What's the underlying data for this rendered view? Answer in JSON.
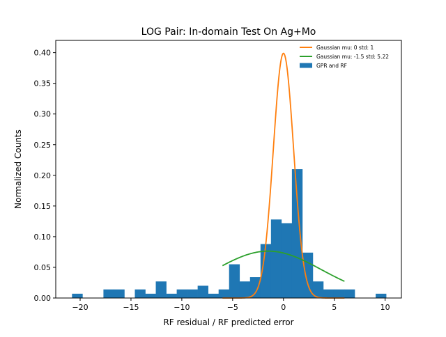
{
  "chart_data": {
    "type": "bar",
    "title": "LOG Pair: In-domain Test On Ag+Mo",
    "xlabel": "RF residual / RF predicted error",
    "ylabel": "Normalized Counts",
    "xlim": [
      -22.4,
      11.6
    ],
    "ylim": [
      0,
      0.42
    ],
    "x_ticks": [
      -20,
      -15,
      -10,
      -5,
      0,
      5,
      10
    ],
    "y_ticks": [
      0.0,
      0.05,
      0.1,
      0.15,
      0.2,
      0.25,
      0.3,
      0.35,
      0.4
    ],
    "grid": false,
    "legend_position": "top-right",
    "histogram": {
      "name": "GPR and RF",
      "color": "#1f77b4",
      "bin_edges": [
        -20.8,
        -19.77,
        -18.74,
        -17.71,
        -16.68,
        -15.65,
        -14.62,
        -13.59,
        -12.56,
        -11.53,
        -10.5,
        -9.47,
        -8.44,
        -7.41,
        -6.38,
        -5.35,
        -4.32,
        -3.29,
        -2.26,
        -1.23,
        -0.2,
        0.83,
        1.86,
        2.89,
        3.92,
        4.95,
        5.98,
        7.01,
        8.04,
        9.07,
        10.1
      ],
      "heights": [
        0.007,
        0,
        0,
        0.014,
        0.014,
        0,
        0.014,
        0.007,
        0.027,
        0.007,
        0.014,
        0.014,
        0.02,
        0.007,
        0.014,
        0.055,
        0.027,
        0.034,
        0.088,
        0.128,
        0.122,
        0.21,
        0.074,
        0.027,
        0.014,
        0.014,
        0.014,
        0,
        0,
        0.007
      ]
    },
    "bar_heights_precision_note": "",
    "series": [
      {
        "name": "Gaussian mu: 0 std: 1",
        "color": "#ff7f0e",
        "mu": 0,
        "std": 1,
        "x_range": [
          -6,
          6
        ]
      },
      {
        "name": "Gaussian mu: -1.5 std: 5.22",
        "color": "#2ca02c",
        "mu": -1.5,
        "std": 5.22,
        "x_range": [
          -6,
          6
        ]
      }
    ]
  }
}
